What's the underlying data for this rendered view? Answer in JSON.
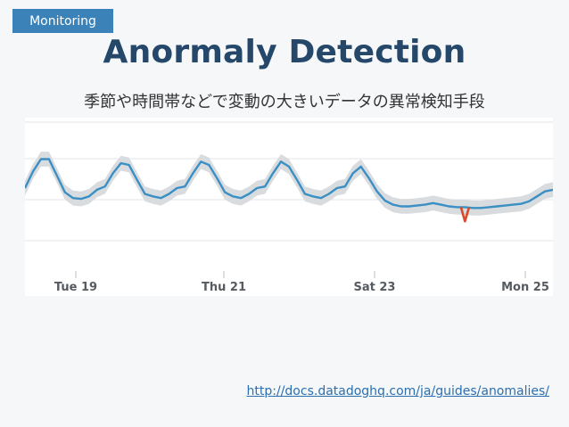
{
  "header": {
    "tag_label": "Monitoring"
  },
  "title": "Anormaly Detection",
  "subtitle": "季節や時間帯などで変動の大きいデータの異常検知手段",
  "link": {
    "text": "http://docs.datadoghq.com/ja/guides/anomalies/"
  },
  "colors": {
    "accent": "#3b82b8",
    "title": "#24476a",
    "series": "#3a8fc4",
    "band": "#d9dcdf",
    "anomaly": "#d84a2b",
    "grid": "#e4e6e8"
  },
  "chart_data": {
    "type": "line",
    "title": "",
    "xlabel": "",
    "ylabel": "",
    "grid": true,
    "legend": "none",
    "x_ticks": [
      "Tue 19",
      "Thu 21",
      "Sat 23",
      "Mon 25"
    ],
    "series": [
      {
        "values": [
          0.4,
          0.6,
          0.75,
          0.75,
          0.55,
          0.35,
          0.28,
          0.27,
          0.3,
          0.38,
          0.42,
          0.58,
          0.7,
          0.68,
          0.5,
          0.33,
          0.3,
          0.28,
          0.33,
          0.4,
          0.42,
          0.58,
          0.72,
          0.68,
          0.52,
          0.35,
          0.3,
          0.28,
          0.33,
          0.4,
          0.42,
          0.58,
          0.72,
          0.66,
          0.5,
          0.33,
          0.3,
          0.28,
          0.33,
          0.4,
          0.42,
          0.58,
          0.66,
          0.52,
          0.36,
          0.25,
          0.2,
          0.18,
          0.18,
          0.19,
          0.2,
          0.22,
          0.2,
          0.18,
          0.17,
          0.17,
          0.16,
          0.16,
          0.17,
          0.18,
          0.19,
          0.2,
          0.21,
          0.24,
          0.3,
          0.36,
          0.38
        ]
      }
    ],
    "anomalies": [
      {
        "index": 55,
        "value": 0.0
      }
    ],
    "ylim": [
      -0.6,
      1.25
    ]
  }
}
